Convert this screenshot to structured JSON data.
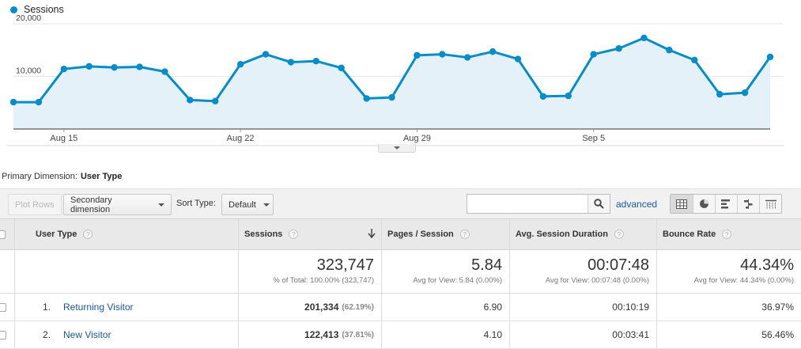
{
  "chart": {
    "legend_label": "Sessions",
    "color": "#058dc7",
    "fill_color": "#e5f1f9"
  },
  "chart_data": {
    "type": "line",
    "series": [
      {
        "name": "Sessions",
        "values": [
          5100,
          5100,
          11400,
          11900,
          11700,
          11800,
          10900,
          5500,
          5300,
          12300,
          14200,
          12700,
          12900,
          11600,
          5800,
          6000,
          14000,
          14200,
          13600,
          14700,
          13300,
          6200,
          6300,
          14200,
          15300,
          17300,
          15000,
          13100,
          6600,
          6900,
          13700
        ]
      }
    ],
    "ylim": [
      0,
      20000
    ],
    "yticks": [
      "20,000",
      "10,000"
    ],
    "ytick_values": [
      20000,
      10000
    ],
    "x_tick_labels": [
      "Aug 15",
      "Aug 22",
      "Aug 29",
      "Sep 5"
    ],
    "x_tick_indices": [
      2,
      9,
      16,
      23
    ],
    "grid": true,
    "legend_position": "top-left"
  },
  "primary_dimension": {
    "label": "Primary Dimension:",
    "value": "User Type"
  },
  "toolbar": {
    "plot_rows": "Plot Rows",
    "secondary_dimension": "Secondary dimension",
    "sort_type_label": "Sort Type:",
    "sort_type_value": "Default",
    "search_placeholder": "",
    "advanced": "advanced"
  },
  "table": {
    "headers": {
      "dimension": "User Type",
      "sessions": "Sessions",
      "pages_per_session": "Pages / Session",
      "avg_duration": "Avg. Session Duration",
      "bounce_rate": "Bounce Rate"
    },
    "totals": {
      "sessions": "323,747",
      "sessions_sub": "% of Total: 100.00% (323,747)",
      "pages_per_session": "5.84",
      "pages_sub": "Avg for View: 5.84 (0.00%)",
      "avg_duration": "00:07:48",
      "duration_sub": "Avg for View: 00:07:48 (0.00%)",
      "bounce_rate": "44.34%",
      "bounce_sub": "Avg for View: 44.34% (0.00%)"
    },
    "rows": [
      {
        "num": "1.",
        "name": "Returning Visitor",
        "sessions": "201,334",
        "sessions_pct": "(62.19%)",
        "pages": "6.90",
        "duration": "00:10:19",
        "bounce": "36.97%"
      },
      {
        "num": "2.",
        "name": "New Visitor",
        "sessions": "122,413",
        "sessions_pct": "(37.81%)",
        "pages": "4.10",
        "duration": "00:03:41",
        "bounce": "56.46%"
      }
    ]
  }
}
